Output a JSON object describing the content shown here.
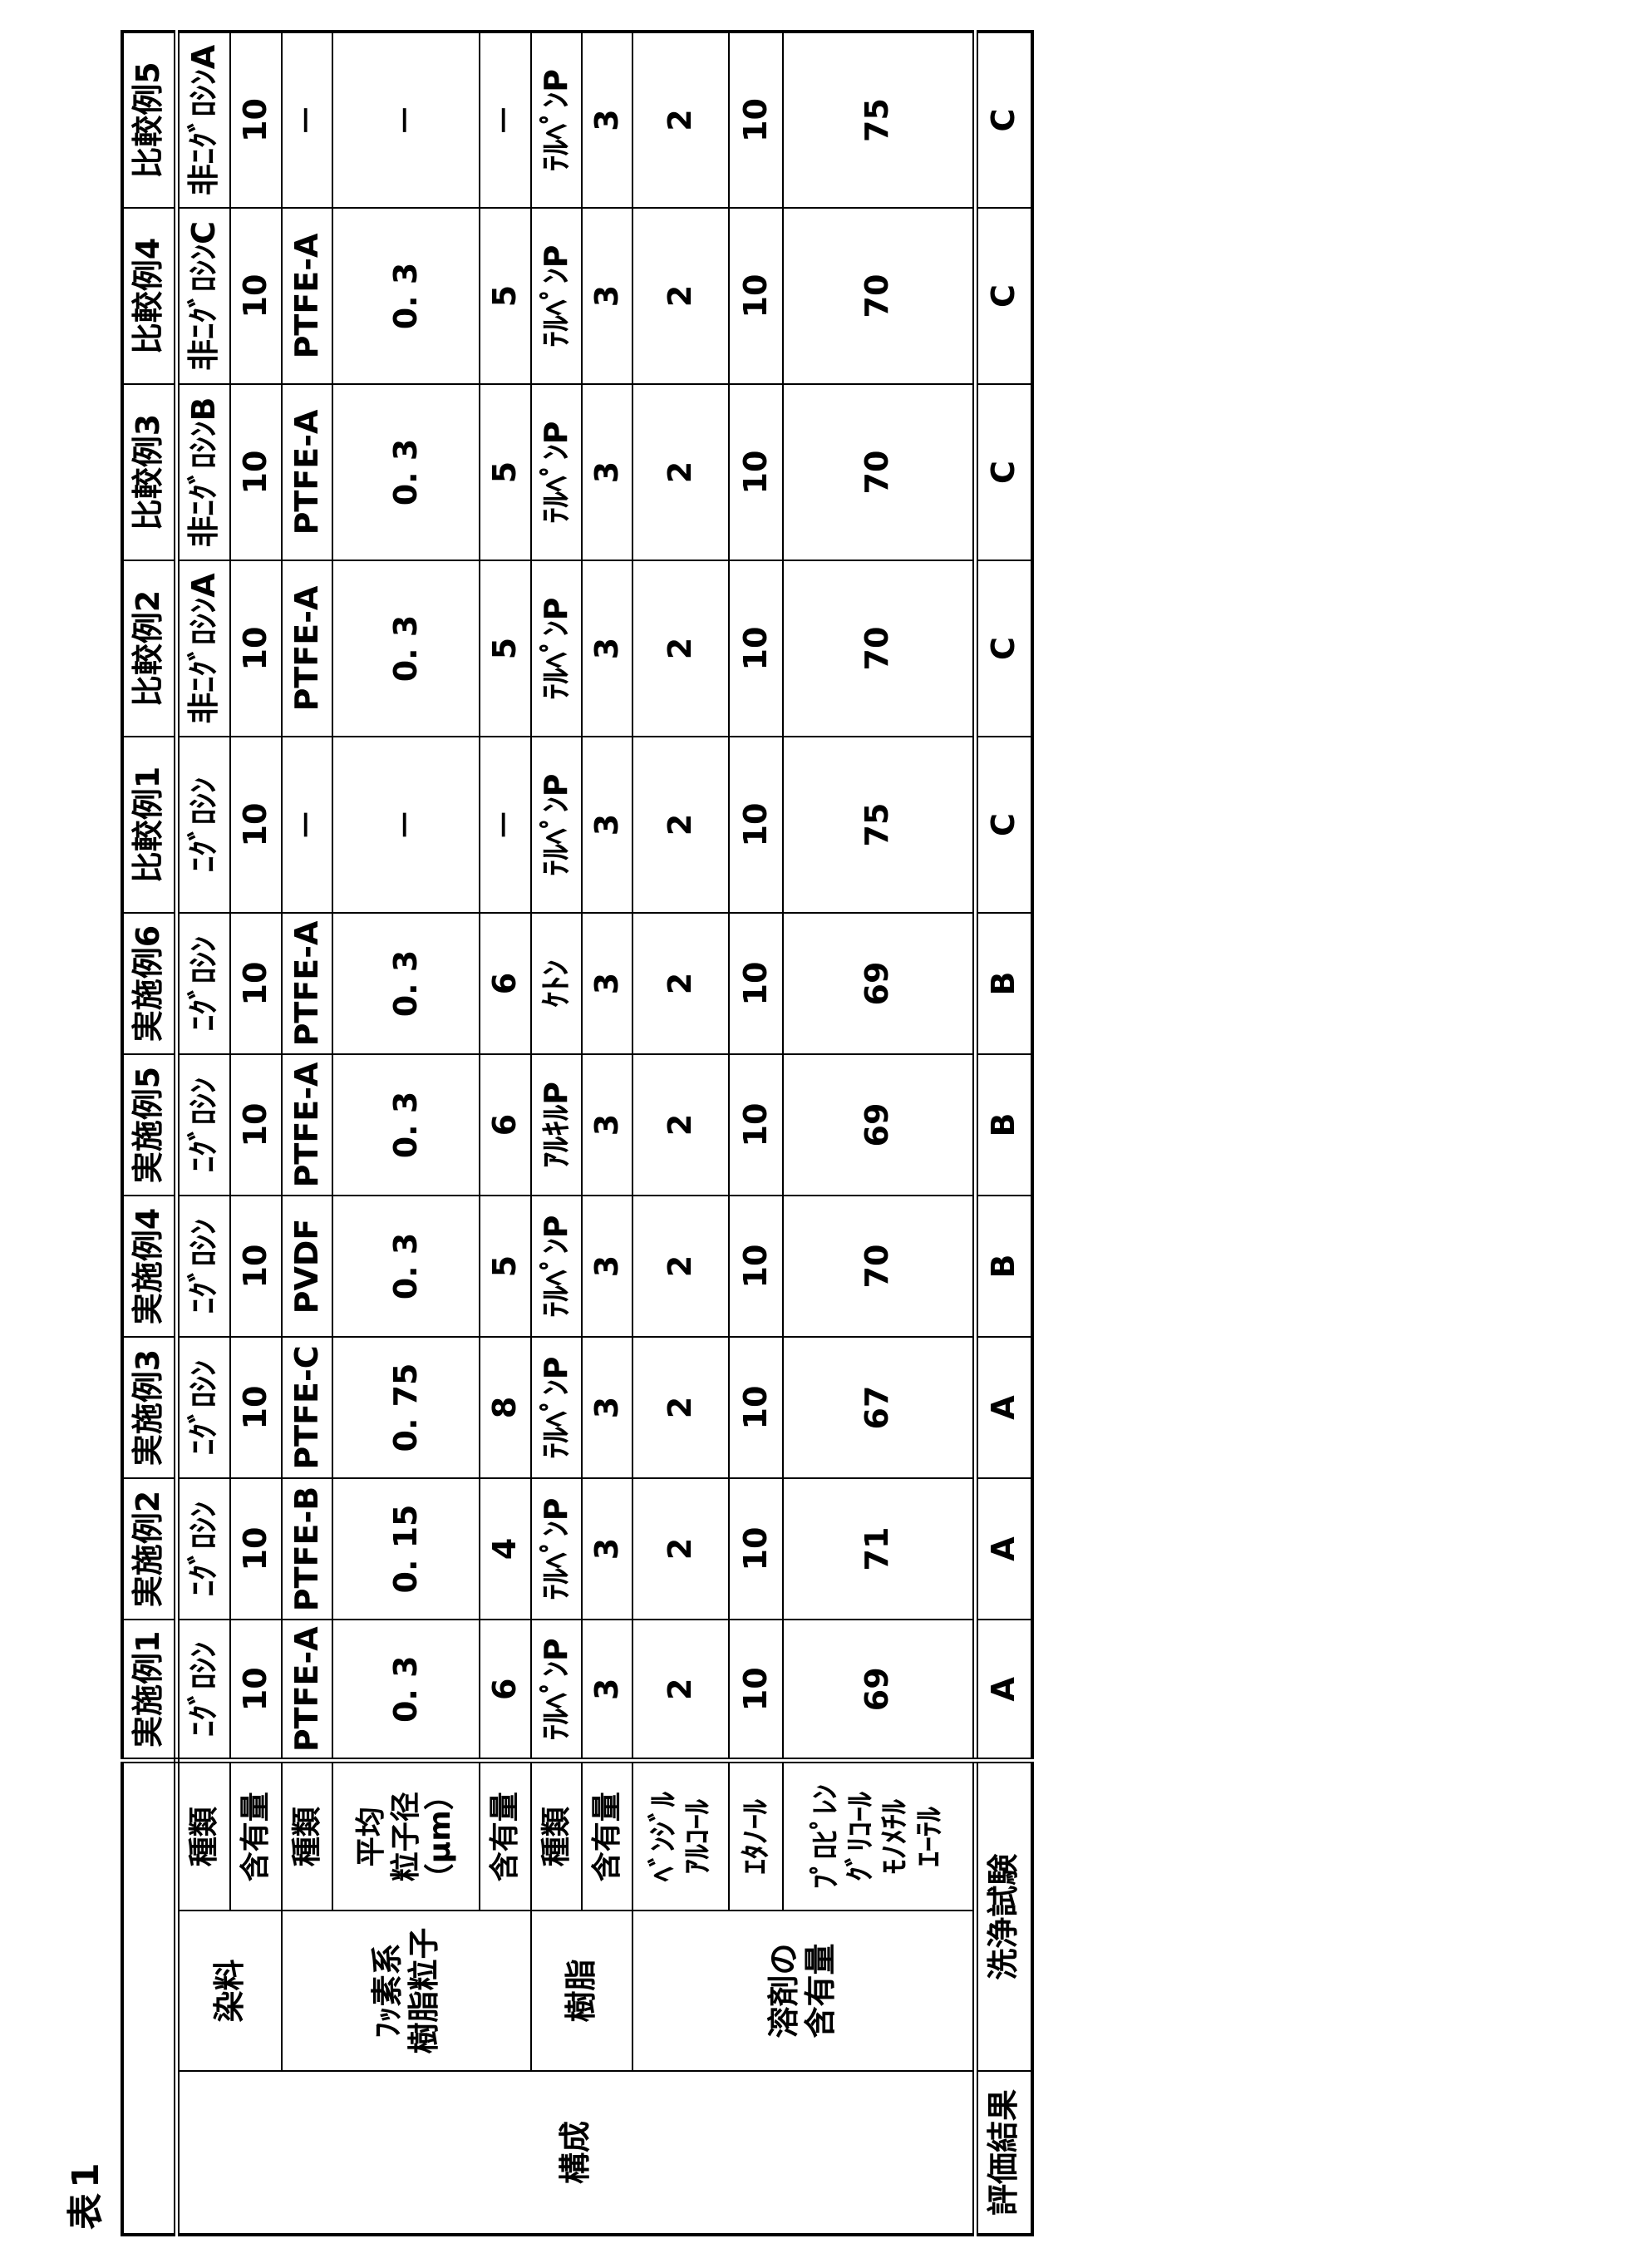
{
  "title": "表1",
  "columns": [
    "実施例1",
    "実施例2",
    "実施例3",
    "実施例4",
    "実施例5",
    "実施例6",
    "比較例1",
    "比較例2",
    "比較例3",
    "比較例4",
    "比較例5"
  ],
  "group_labels": {
    "composition": "構成",
    "evaluation": "評価結果"
  },
  "rows": [
    {
      "category": "染料",
      "sub": "種類",
      "values": [
        "ﾆｸﾞﾛｼﾝ",
        "ﾆｸﾞﾛｼﾝ",
        "ﾆｸﾞﾛｼﾝ",
        "ﾆｸﾞﾛｼﾝ",
        "ﾆｸﾞﾛｼﾝ",
        "ﾆｸﾞﾛｼﾝ",
        "ﾆｸﾞﾛｼﾝ",
        "非ﾆｸﾞﾛｼﾝA",
        "非ﾆｸﾞﾛｼﾝB",
        "非ﾆｸﾞﾛｼﾝC",
        "非ﾆｸﾞﾛｼﾝA"
      ]
    },
    {
      "category": "染料",
      "sub": "含有量",
      "values": [
        "10",
        "10",
        "10",
        "10",
        "10",
        "10",
        "10",
        "10",
        "10",
        "10",
        "10"
      ]
    },
    {
      "category": "ﾌｯ素系\n樹脂粒子",
      "sub": "種類",
      "values": [
        "PTFE-A",
        "PTFE-B",
        "PTFE-C",
        "PVDF",
        "PTFE-A",
        "PTFE-A",
        "－",
        "PTFE-A",
        "PTFE-A",
        "PTFE-A",
        "－"
      ]
    },
    {
      "category": "ﾌｯ素系\n樹脂粒子",
      "sub": "平均\n粒子径\n（μm）",
      "values": [
        "0. 3",
        "0. 15",
        "0. 75",
        "0. 3",
        "0. 3",
        "0. 3",
        "－",
        "0. 3",
        "0. 3",
        "0. 3",
        "－"
      ]
    },
    {
      "category": "ﾌｯ素系\n樹脂粒子",
      "sub": "含有量",
      "values": [
        "6",
        "4",
        "8",
        "5",
        "6",
        "6",
        "－",
        "5",
        "5",
        "5",
        "－"
      ]
    },
    {
      "category": "樹脂",
      "sub": "種類",
      "values": [
        "ﾃﾙﾍﾟﾝP",
        "ﾃﾙﾍﾟﾝP",
        "ﾃﾙﾍﾟﾝP",
        "ﾃﾙﾍﾟﾝP",
        "ｱﾙｷﾙP",
        "ｹﾄﾝ",
        "ﾃﾙﾍﾟﾝP",
        "ﾃﾙﾍﾟﾝP",
        "ﾃﾙﾍﾟﾝP",
        "ﾃﾙﾍﾟﾝP",
        "ﾃﾙﾍﾟﾝP"
      ]
    },
    {
      "category": "樹脂",
      "sub": "含有量",
      "values": [
        "3",
        "3",
        "3",
        "3",
        "3",
        "3",
        "3",
        "3",
        "3",
        "3",
        "3"
      ]
    },
    {
      "category": "溶剤の\n含有量",
      "sub": "ﾍﾞﾝｼﾞﾙ\nｱﾙｺｰﾙ",
      "values": [
        "2",
        "2",
        "2",
        "2",
        "2",
        "2",
        "2",
        "2",
        "2",
        "2",
        "2"
      ]
    },
    {
      "category": "溶剤の\n含有量",
      "sub": "ｴﾀﾉｰﾙ",
      "values": [
        "10",
        "10",
        "10",
        "10",
        "10",
        "10",
        "10",
        "10",
        "10",
        "10",
        "10"
      ]
    },
    {
      "category": "溶剤の\n含有量",
      "sub": "ﾌﾟﾛﾋﾟﾚﾝ\nｸﾞﾘｺｰﾙ\nﾓﾉﾒﾁﾙ\nｴｰﾃﾙ",
      "values": [
        "69",
        "71",
        "67",
        "70",
        "69",
        "69",
        "75",
        "70",
        "70",
        "70",
        "75"
      ]
    }
  ],
  "evaluation": {
    "label": "洗浄試験",
    "values": [
      "A",
      "A",
      "A",
      "B",
      "B",
      "B",
      "C",
      "C",
      "C",
      "C",
      "C"
    ]
  }
}
